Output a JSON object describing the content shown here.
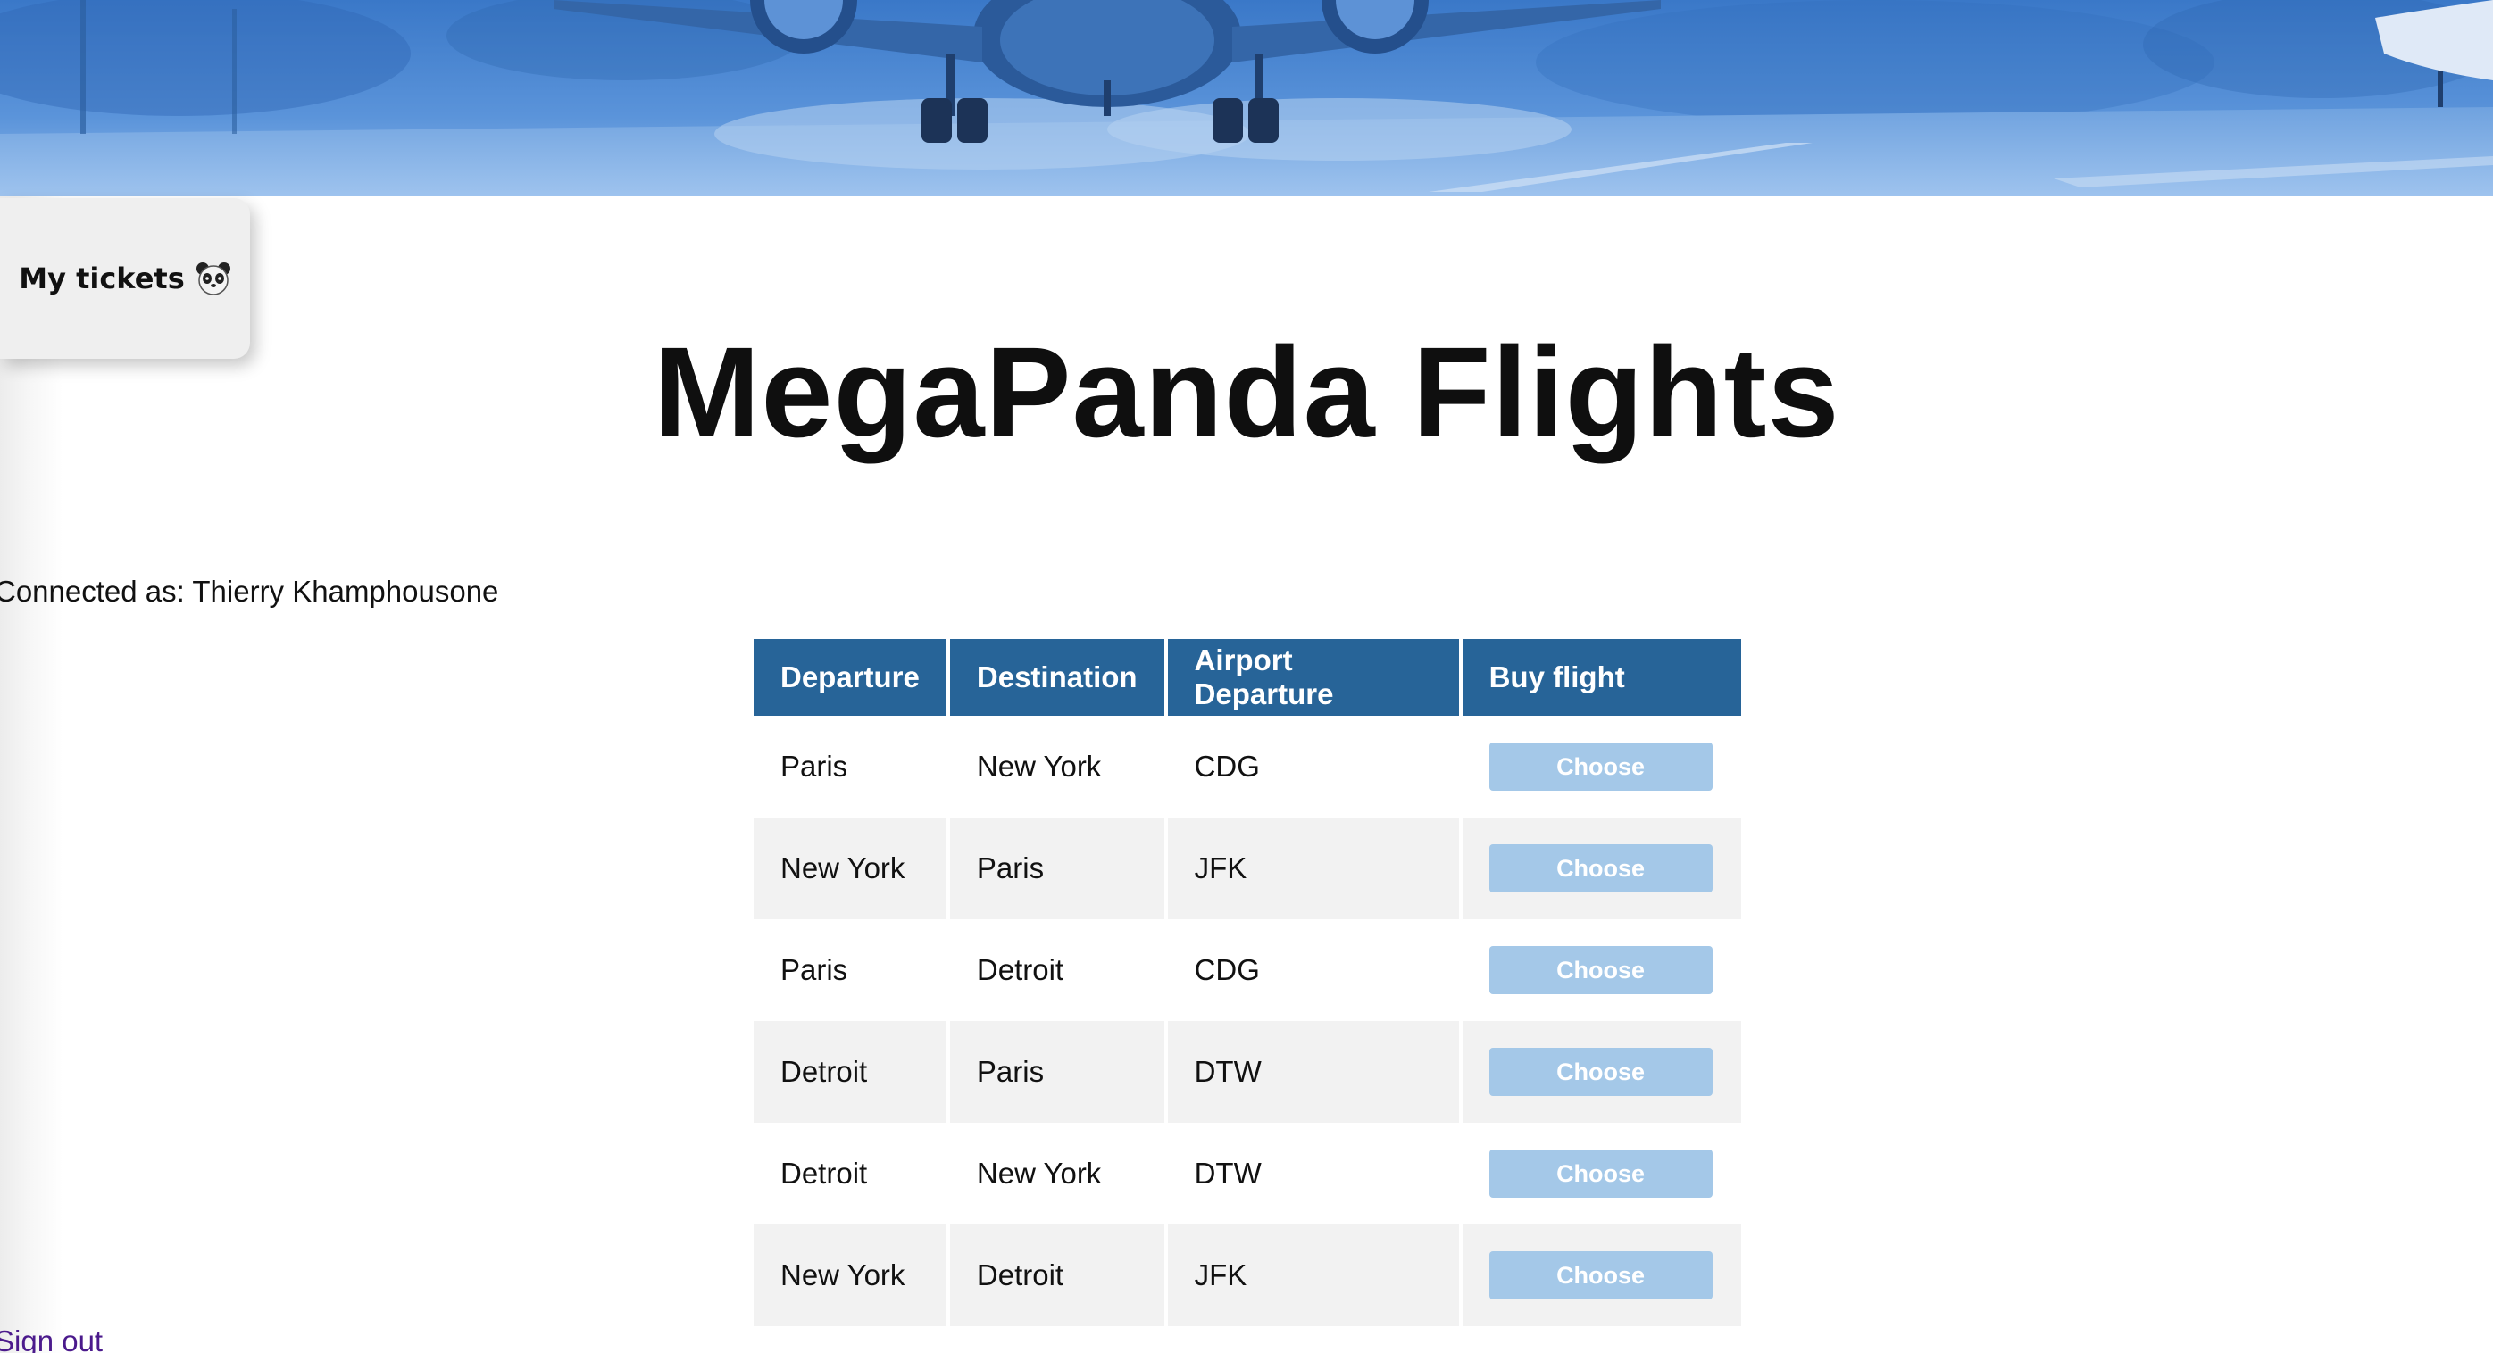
{
  "banner": {
    "alt": "airplane-on-runway-banner",
    "tint_color": "#4a86d3"
  },
  "nav": {
    "my_tickets_label": "My tickets",
    "my_tickets_icon": "panda-icon"
  },
  "header": {
    "title": "MegaPanda Flights"
  },
  "user": {
    "connected_text": "Connected as: Thierry Khamphousone"
  },
  "table": {
    "header_color": "#276498",
    "columns": [
      "Departure",
      "Destination",
      "Airport Departure",
      "Buy flight"
    ],
    "rows": [
      {
        "departure": "Paris",
        "destination": "New York",
        "airport": "CDG",
        "action": "Choose"
      },
      {
        "departure": "New York",
        "destination": "Paris",
        "airport": "JFK",
        "action": "Choose"
      },
      {
        "departure": "Paris",
        "destination": "Detroit",
        "airport": "CDG",
        "action": "Choose"
      },
      {
        "departure": "Detroit",
        "destination": "Paris",
        "airport": "DTW",
        "action": "Choose"
      },
      {
        "departure": "Detroit",
        "destination": "New York",
        "airport": "DTW",
        "action": "Choose"
      },
      {
        "departure": "New York",
        "destination": "Detroit",
        "airport": "JFK",
        "action": "Choose"
      }
    ]
  },
  "footer": {
    "sign_out_label": "Sign out",
    "sign_out_color": "#4b1a8c"
  }
}
